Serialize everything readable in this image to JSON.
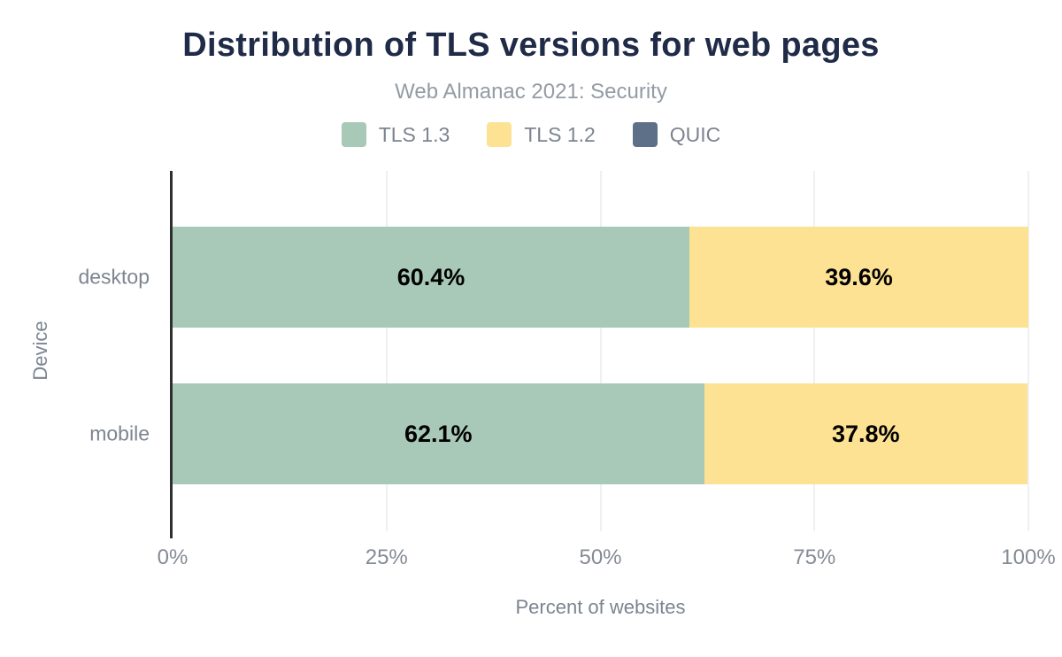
{
  "chart_data": {
    "type": "bar",
    "orientation": "horizontal",
    "stacked": true,
    "title": "Distribution of TLS versions for web pages",
    "subtitle": "Web Almanac 2021: Security",
    "categories": [
      "desktop",
      "mobile"
    ],
    "series": [
      {
        "name": "TLS 1.3",
        "color": "#a8c9b7",
        "values": [
          60.4,
          62.1
        ]
      },
      {
        "name": "TLS 1.2",
        "color": "#fde294",
        "values": [
          39.6,
          37.8
        ]
      },
      {
        "name": "QUIC",
        "color": "#5e7087",
        "values": [
          0,
          0
        ]
      }
    ],
    "data_labels": {
      "desktop": [
        "60.4%",
        "39.6%"
      ],
      "mobile": [
        "62.1%",
        "37.8%"
      ]
    },
    "xlabel": "Percent of websites",
    "ylabel": "Device",
    "xlim": [
      0,
      100
    ],
    "x_ticks": [
      "0%",
      "25%",
      "50%",
      "75%",
      "100%"
    ],
    "x_tick_values": [
      0,
      25,
      50,
      75,
      100
    ],
    "grid": "vertical",
    "legend_position": "top"
  },
  "colors": {
    "background": "#ffffff",
    "title_text": "#1f2b47",
    "muted_text": "#7b8490",
    "axis_line": "#2f2f2f",
    "gridline": "#eef0f1",
    "value_label_text": "#000000"
  }
}
